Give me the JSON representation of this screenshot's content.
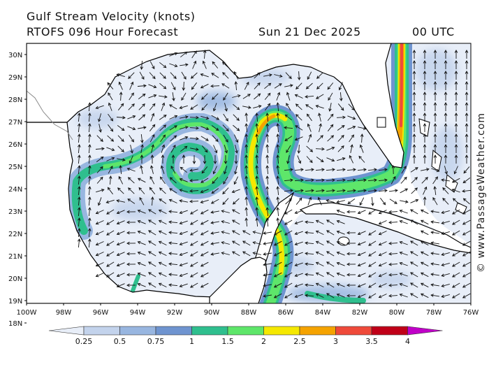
{
  "header": {
    "title": "Gulf Stream Velocity (knots)",
    "subtitle": "RTOFS 096 Hour Forecast",
    "date": "Sun 21 Dec 2025",
    "time": "00 UTC"
  },
  "axes": {
    "lat_labels": [
      "30N",
      "29N",
      "28N",
      "27N",
      "26N",
      "25N",
      "24N",
      "23N",
      "22N",
      "21N",
      "20N",
      "19N",
      "18N"
    ],
    "lon_labels": [
      "100W",
      "98W",
      "96W",
      "94W",
      "92W",
      "90W",
      "88W",
      "86W",
      "84W",
      "82W",
      "80W",
      "78W",
      "76W"
    ]
  },
  "colorbar": {
    "labels": [
      "0.25",
      "0.5",
      "0.75",
      "1",
      "1.5",
      "2",
      "2.5",
      "3",
      "3.5",
      "4"
    ],
    "colors": [
      "#e8eef8",
      "#c3d3ec",
      "#98b6e0",
      "#6f94d0",
      "#2fbf8e",
      "#5ee66a",
      "#f5e800",
      "#f5a300",
      "#ef4a3a",
      "#c00018",
      "#c000c8"
    ]
  },
  "watermark": "© www.PassageWeather.com",
  "map_colors": {
    "land": "#ffffff",
    "water_base": "#e8eef8",
    "coast": "#000000",
    "border": "#8a8a8a",
    "arrow": "#111111"
  }
}
